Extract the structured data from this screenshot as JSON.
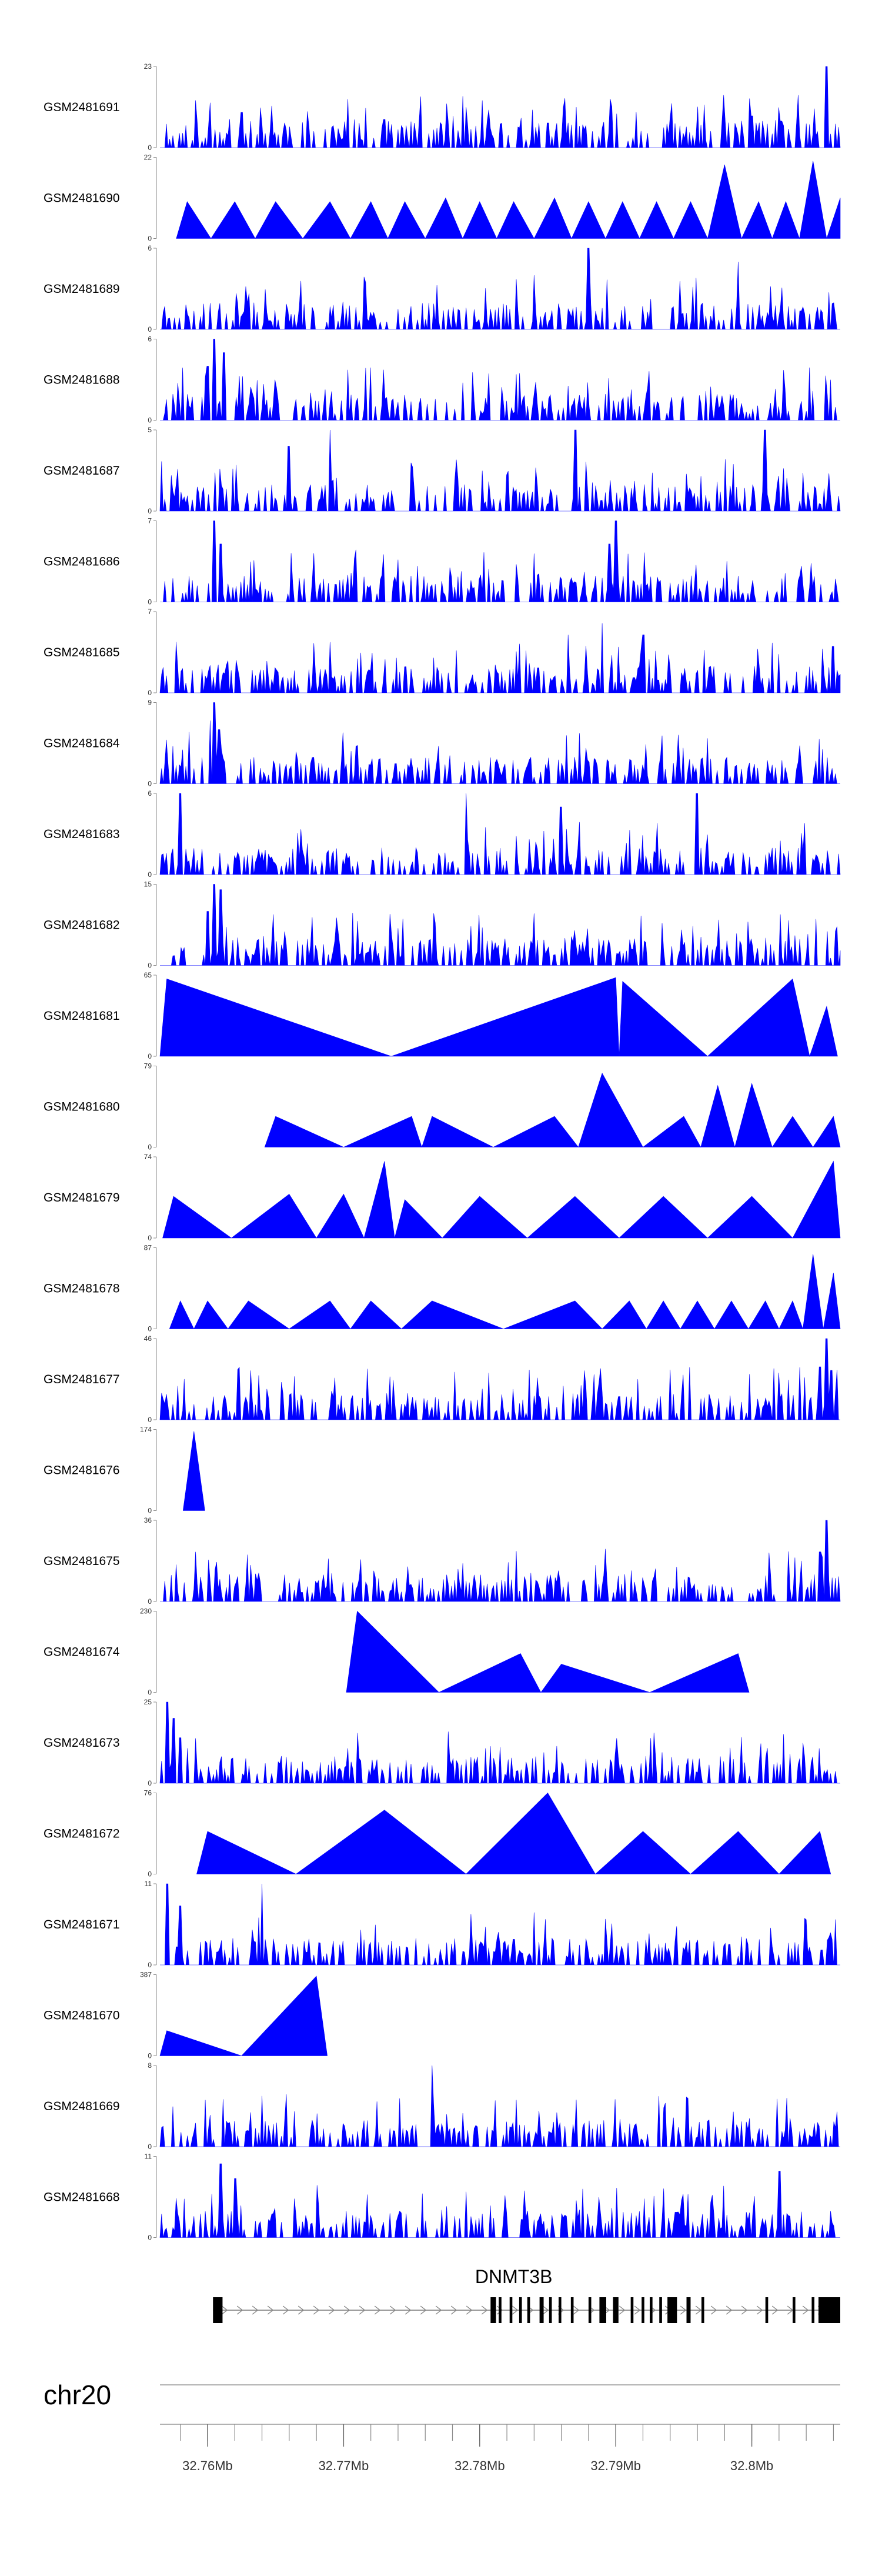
{
  "chart_data": {
    "type": "area",
    "description_source": "genome browser coverage tracks",
    "color": "#0000ff",
    "x_range": [
      32.7565,
      32.8065
    ],
    "tracks": [
      {
        "name": "GSM2481691",
        "ymax": 23,
        "profile": "noisy",
        "seed": 11,
        "peaks": [
          [
            32.8055,
            23
          ],
          [
            32.7625,
            10
          ],
          [
            32.773,
            8
          ],
          [
            32.785,
            7
          ],
          [
            32.8,
            9
          ]
        ]
      },
      {
        "name": "GSM2481690",
        "ymax": 22,
        "profile": "tri",
        "peaks": [
          [
            32.7585,
            10
          ],
          [
            32.762,
            10
          ],
          [
            32.765,
            10
          ],
          [
            32.769,
            10
          ],
          [
            32.772,
            10
          ],
          [
            32.7745,
            10
          ],
          [
            32.7775,
            11
          ],
          [
            32.78,
            10
          ],
          [
            32.7825,
            10
          ],
          [
            32.7855,
            11
          ],
          [
            32.788,
            10
          ],
          [
            32.7905,
            10
          ],
          [
            32.793,
            10
          ],
          [
            32.7955,
            10
          ],
          [
            32.798,
            20
          ],
          [
            32.8005,
            10
          ],
          [
            32.8025,
            10
          ],
          [
            32.8045,
            21
          ],
          [
            32.8065,
            11
          ]
        ]
      },
      {
        "name": "GSM2481689",
        "ymax": 6,
        "profile": "noisy",
        "seed": 23,
        "peaks": [
          [
            32.788,
            6
          ],
          [
            32.799,
            5
          ],
          [
            32.784,
            4
          ]
        ]
      },
      {
        "name": "GSM2481688",
        "ymax": 6,
        "profile": "noisy",
        "seed": 31,
        "peaks": [
          [
            32.7605,
            6
          ],
          [
            32.7612,
            5
          ],
          [
            32.76,
            4
          ]
        ]
      },
      {
        "name": "GSM2481687",
        "ymax": 5,
        "profile": "noisy",
        "seed": 41,
        "peaks": [
          [
            32.769,
            5
          ],
          [
            32.787,
            5
          ],
          [
            32.801,
            5
          ],
          [
            32.766,
            4
          ]
        ]
      },
      {
        "name": "GSM2481686",
        "ymax": 7,
        "profile": "noisy",
        "seed": 53,
        "peaks": [
          [
            32.7605,
            7
          ],
          [
            32.79,
            7
          ],
          [
            32.7895,
            5
          ],
          [
            32.761,
            5
          ]
        ]
      },
      {
        "name": "GSM2481685",
        "ymax": 7,
        "profile": "noisy",
        "seed": 61,
        "peaks": [
          [
            32.7865,
            5
          ],
          [
            32.789,
            6
          ],
          [
            32.792,
            5
          ],
          [
            32.806,
            4
          ]
        ]
      },
      {
        "name": "GSM2481684",
        "ymax": 9,
        "profile": "noisy",
        "seed": 71,
        "peaks": [
          [
            32.7605,
            9
          ],
          [
            32.7602,
            7
          ],
          [
            32.7608,
            6
          ]
        ]
      },
      {
        "name": "GSM2481683",
        "ymax": 6,
        "profile": "noisy",
        "seed": 83,
        "peaks": [
          [
            32.758,
            6
          ],
          [
            32.779,
            6
          ],
          [
            32.796,
            6
          ],
          [
            32.786,
            5
          ]
        ]
      },
      {
        "name": "GSM2481682",
        "ymax": 15,
        "profile": "noisy",
        "seed": 97,
        "peaks": [
          [
            32.7605,
            15
          ],
          [
            32.761,
            14
          ],
          [
            32.76,
            10
          ]
        ]
      },
      {
        "name": "GSM2481681",
        "ymax": 65,
        "profile": "tri",
        "peaks": [
          [
            32.757,
            62
          ],
          [
            32.79,
            63
          ],
          [
            32.7905,
            60
          ],
          [
            32.803,
            62
          ],
          [
            32.8055,
            40
          ]
        ]
      },
      {
        "name": "GSM2481680",
        "ymax": 79,
        "profile": "tri",
        "peaks": [
          [
            32.765,
            30
          ],
          [
            32.775,
            30
          ],
          [
            32.7765,
            30
          ],
          [
            32.7855,
            30
          ],
          [
            32.789,
            72
          ],
          [
            32.795,
            30
          ],
          [
            32.7975,
            60
          ],
          [
            32.8,
            62
          ],
          [
            32.803,
            30
          ],
          [
            32.806,
            30
          ]
        ]
      },
      {
        "name": "GSM2481679",
        "ymax": 74,
        "profile": "tri",
        "peaks": [
          [
            32.7575,
            38
          ],
          [
            32.766,
            40
          ],
          [
            32.77,
            40
          ],
          [
            32.773,
            70
          ],
          [
            32.7745,
            35
          ],
          [
            32.78,
            38
          ],
          [
            32.787,
            38
          ],
          [
            32.7935,
            38
          ],
          [
            32.8,
            38
          ],
          [
            32.806,
            70
          ]
        ]
      },
      {
        "name": "GSM2481678",
        "ymax": 87,
        "profile": "tri",
        "peaks": [
          [
            32.758,
            30
          ],
          [
            32.76,
            30
          ],
          [
            32.763,
            30
          ],
          [
            32.769,
            30
          ],
          [
            32.772,
            30
          ],
          [
            32.7765,
            30
          ],
          [
            32.787,
            30
          ],
          [
            32.791,
            30
          ],
          [
            32.7935,
            30
          ],
          [
            32.796,
            30
          ],
          [
            32.7985,
            30
          ],
          [
            32.801,
            30
          ],
          [
            32.803,
            30
          ],
          [
            32.8045,
            80
          ],
          [
            32.806,
            60
          ]
        ]
      },
      {
        "name": "GSM2481677",
        "ymax": 46,
        "profile": "noisy",
        "seed": 107,
        "peaks": [
          [
            32.8055,
            46
          ],
          [
            32.805,
            30
          ],
          [
            32.8058,
            28
          ]
        ]
      },
      {
        "name": "GSM2481676",
        "ymax": 174,
        "profile": "tri",
        "peaks": [
          [
            32.759,
            170
          ]
        ]
      },
      {
        "name": "GSM2481675",
        "ymax": 36,
        "profile": "noisy",
        "seed": 113,
        "peaks": [
          [
            32.8055,
            36
          ],
          [
            32.805,
            22
          ]
        ]
      },
      {
        "name": "GSM2481674",
        "ymax": 230,
        "profile": "tri",
        "peaks": [
          [
            32.771,
            230
          ],
          [
            32.786,
            80
          ],
          [
            32.783,
            110
          ],
          [
            32.799,
            110
          ]
        ]
      },
      {
        "name": "GSM2481673",
        "ymax": 25,
        "profile": "noisy",
        "seed": 127,
        "peaks": [
          [
            32.757,
            25
          ],
          [
            32.7575,
            20
          ],
          [
            32.758,
            14
          ]
        ]
      },
      {
        "name": "GSM2481672",
        "ymax": 76,
        "profile": "tri",
        "peaks": [
          [
            32.76,
            40
          ],
          [
            32.773,
            60
          ],
          [
            32.785,
            76
          ],
          [
            32.792,
            40
          ],
          [
            32.799,
            40
          ],
          [
            32.805,
            40
          ]
        ]
      },
      {
        "name": "GSM2481671",
        "ymax": 11,
        "profile": "noisy",
        "seed": 131,
        "peaks": [
          [
            32.757,
            11
          ],
          [
            32.764,
            11
          ],
          [
            32.758,
            8
          ]
        ]
      },
      {
        "name": "GSM2481670",
        "ymax": 387,
        "profile": "tri",
        "peaks": [
          [
            32.757,
            120
          ],
          [
            32.768,
            380
          ]
        ]
      },
      {
        "name": "GSM2481669",
        "ymax": 8,
        "profile": "noisy",
        "seed": 137,
        "peaks": [
          [
            32.7765,
            8
          ],
          [
            32.764,
            5
          ]
        ]
      },
      {
        "name": "GSM2481668",
        "ymax": 11,
        "profile": "noisy",
        "seed": 149,
        "peaks": [
          [
            32.761,
            10
          ],
          [
            32.762,
            8
          ],
          [
            32.802,
            9
          ]
        ]
      }
    ],
    "gene": {
      "label": "DNMT3B",
      "strand": "+",
      "line_start": 32.7604,
      "line_end": 32.8065,
      "exons": [
        [
          32.7604,
          32.7611
        ],
        [
          32.7808,
          32.7812
        ],
        [
          32.7814,
          32.7816
        ],
        [
          32.7822,
          32.7824
        ],
        [
          32.7829,
          32.7831
        ],
        [
          32.7835,
          32.7837
        ],
        [
          32.7844,
          32.7847
        ],
        [
          32.7851,
          32.7853
        ],
        [
          32.7858,
          32.786
        ],
        [
          32.7867,
          32.7869
        ],
        [
          32.788,
          32.7882
        ],
        [
          32.7888,
          32.7893
        ],
        [
          32.7898,
          32.7902
        ],
        [
          32.7911,
          32.7913
        ],
        [
          32.7919,
          32.7921
        ],
        [
          32.7925,
          32.7927
        ],
        [
          32.7932,
          32.7934
        ],
        [
          32.7938,
          32.7945
        ],
        [
          32.7952,
          32.7955
        ],
        [
          32.7963,
          32.7965
        ],
        [
          32.801,
          32.8012
        ],
        [
          32.803,
          32.8032
        ],
        [
          32.8044,
          32.8046
        ],
        [
          32.8049,
          32.8065
        ]
      ]
    },
    "axis": {
      "chromosome": "chr20",
      "tick_labels": [
        {
          "pos": 32.76,
          "label": "32.76Mb"
        },
        {
          "pos": 32.77,
          "label": "32.77Mb"
        },
        {
          "pos": 32.78,
          "label": "32.78Mb"
        },
        {
          "pos": 32.79,
          "label": "32.79Mb"
        },
        {
          "pos": 32.8,
          "label": "32.8Mb"
        }
      ],
      "minor_step": 0.002
    }
  }
}
